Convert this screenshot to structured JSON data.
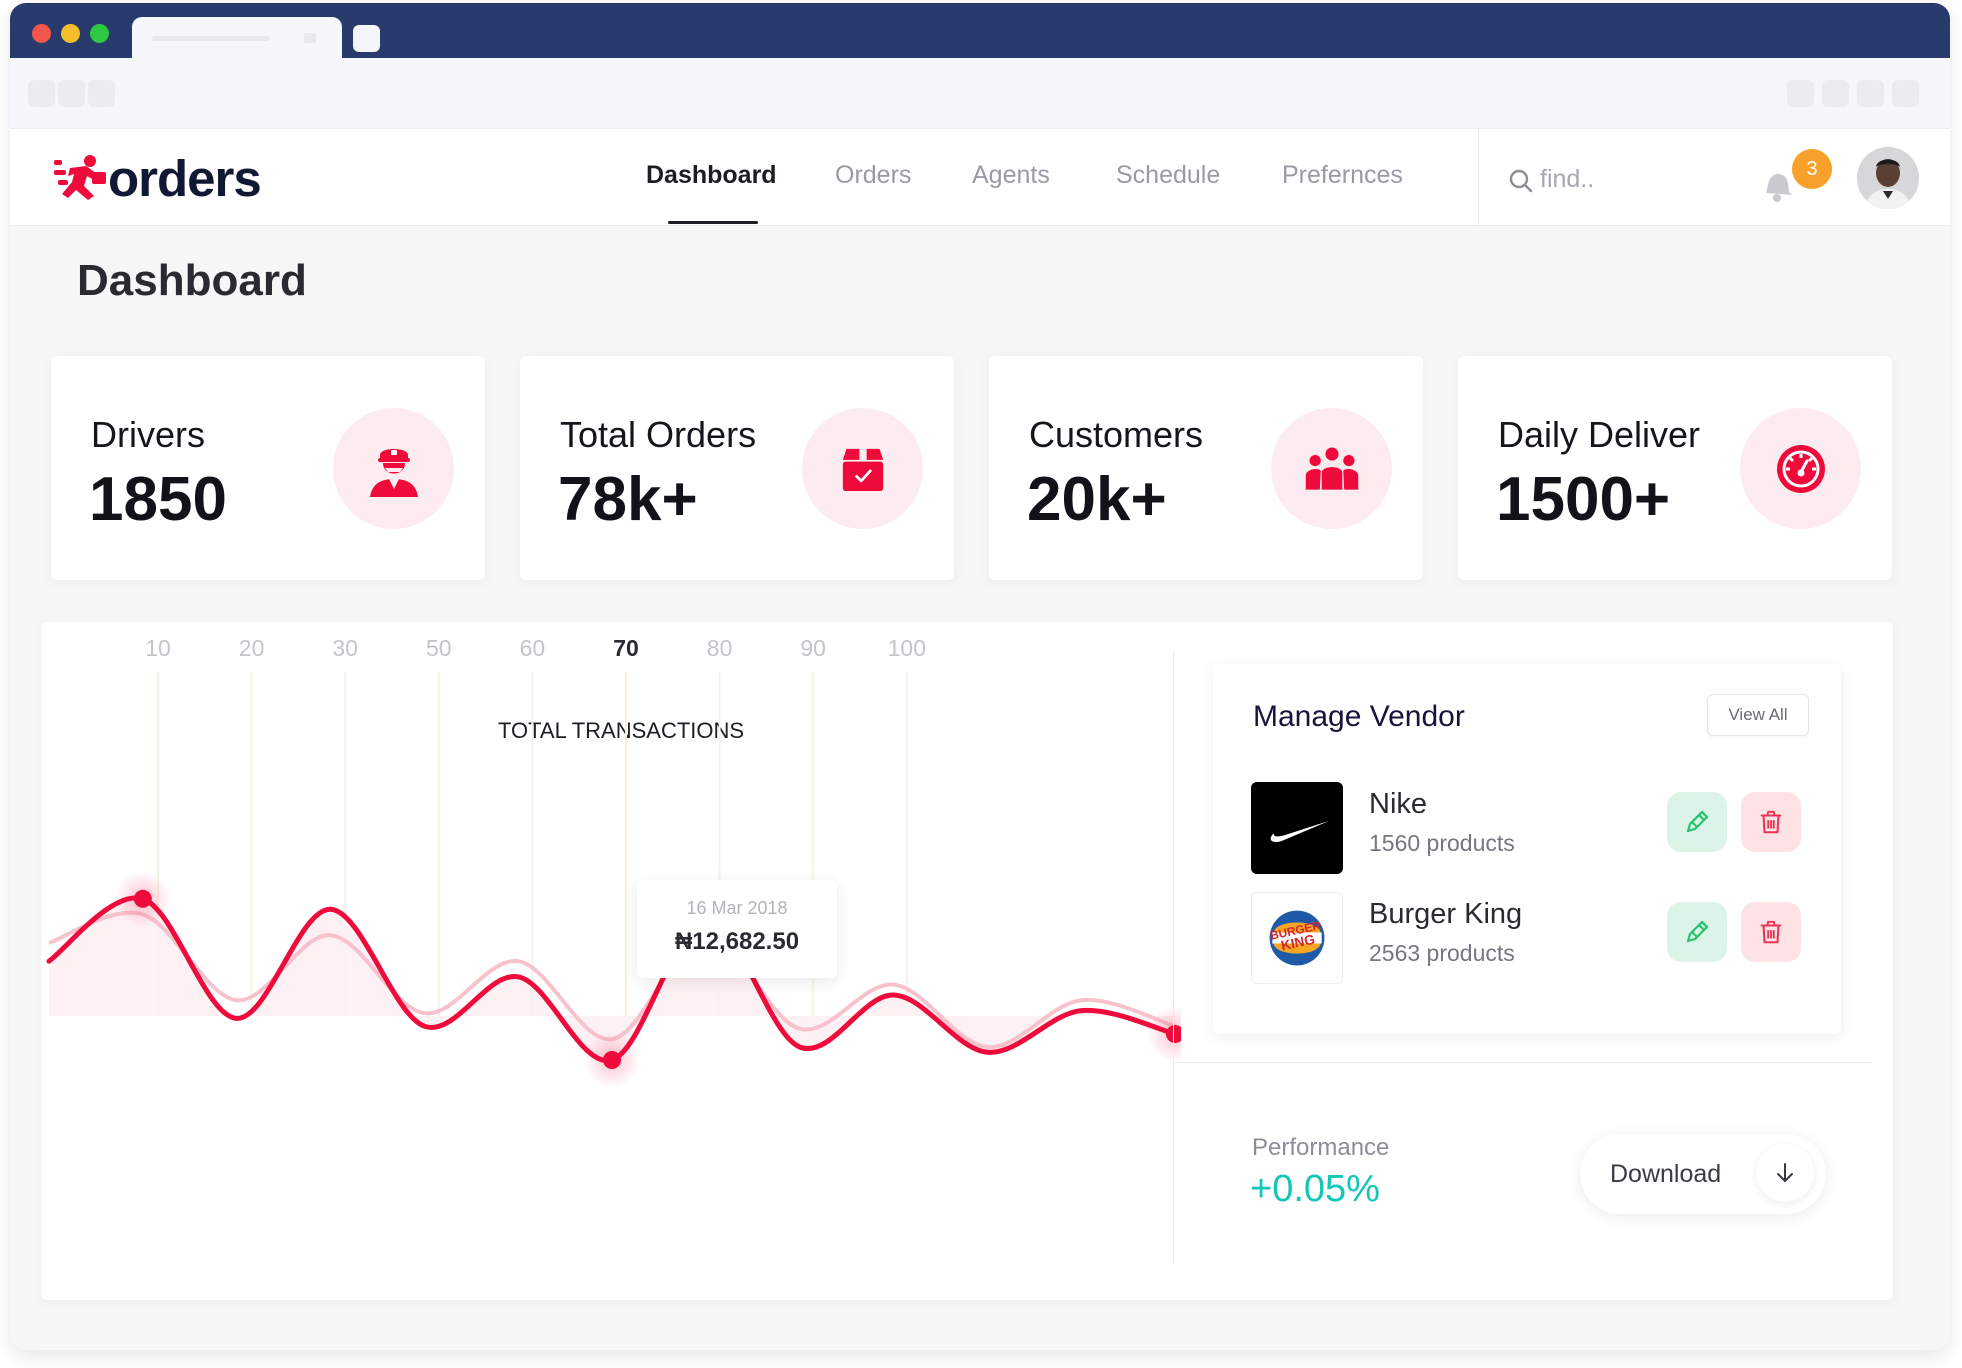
{
  "app": {
    "brand": "orders",
    "accent": "#ee0a3a",
    "accent_soft": "#fdecef"
  },
  "nav": {
    "items": [
      {
        "label": "Dashboard",
        "active": true
      },
      {
        "label": "Orders",
        "active": false
      },
      {
        "label": "Agents",
        "active": false
      },
      {
        "label": "Schedule",
        "active": false
      },
      {
        "label": "Prefernces",
        "active": false
      }
    ]
  },
  "search": {
    "placeholder": "find.."
  },
  "notifications": {
    "count": "3",
    "icon": "bell-icon"
  },
  "page": {
    "title": "Dashboard"
  },
  "stats": [
    {
      "label": "Drivers",
      "value": "1850",
      "icon": "driver-icon"
    },
    {
      "label": "Total Orders",
      "value": "78k+",
      "icon": "package-icon"
    },
    {
      "label": "Customers",
      "value": "20k+",
      "icon": "users-icon"
    },
    {
      "label": "Daily Deliver",
      "value": "1500+",
      "icon": "speedometer-icon"
    }
  ],
  "chart_data": {
    "type": "line",
    "title": "TOTAL TRANSACTIONS",
    "x_ticks": [
      "10",
      "20",
      "30",
      "50",
      "60",
      "70",
      "80",
      "90",
      "100"
    ],
    "highlighted_tick": "70",
    "tooltip": {
      "date": "16 Mar 2018",
      "value": "₦12,682.50"
    },
    "series": [
      {
        "color": "#ee0a3a",
        "values": [
          0.62,
          0.38,
          0.84,
          0.42,
          0.87,
          0.68,
          1.0,
          0.46,
          0.95,
          0.75,
          0.97,
          0.81,
          0.9
        ]
      },
      {
        "color": "#f7c2cc",
        "values": [
          0.55,
          0.44,
          0.77,
          0.52,
          0.82,
          0.62,
          0.92,
          0.52,
          0.88,
          0.71,
          0.95,
          0.77,
          0.87
        ]
      }
    ],
    "highlight_points": [
      1,
      6,
      12
    ],
    "grid": true
  },
  "vendors": {
    "title": "Manage Vendor",
    "view_all": "View All",
    "items": [
      {
        "name": "Nike",
        "products": "1560 products",
        "logo": "nike-logo"
      },
      {
        "name": "Burger King",
        "products": "2563 products",
        "logo": "burger-king-logo"
      }
    ]
  },
  "performance": {
    "label": "Performance",
    "value": "+0.05%",
    "color": "#12c7b6"
  },
  "download": {
    "label": "Download"
  },
  "burger_king_logo_text": "BURGER KING"
}
